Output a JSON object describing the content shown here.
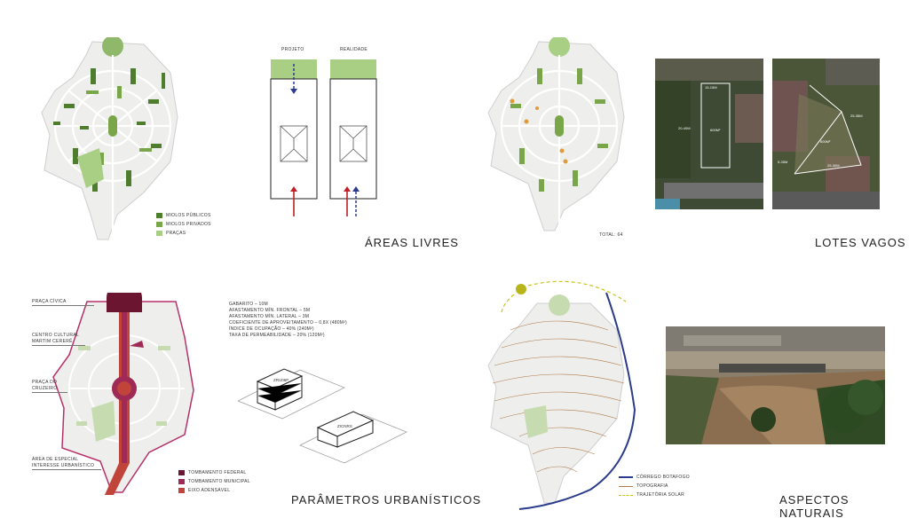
{
  "panels": {
    "areas_livres": {
      "title": "ÁREAS LIVRES",
      "legend": [
        {
          "label": "MIOLOS PÚBLICOS",
          "color": "#4f7d2e"
        },
        {
          "label": "MIOLOS PRIVADOS",
          "color": "#7aa64a"
        },
        {
          "label": "PRAÇAS",
          "color": "#a9cf84"
        }
      ],
      "diagram_labels": {
        "projeto": "PROJETO",
        "realidade": "REALIDADE"
      }
    },
    "lotes_vagos": {
      "title": "LOTES VAGOS",
      "total": "TOTAL: 64",
      "photo1_labels": [
        "15-15M",
        "20-40M",
        "600M²"
      ],
      "photo2_labels": [
        "25-35M",
        "600M²",
        "5-35M",
        "25-30M"
      ]
    },
    "parametros": {
      "title": "PARÂMETROS URBANÍSTICOS",
      "params": [
        "GABARITO – 10M",
        "AFASTAMENTO MÍN. FRONTAL – 5M",
        "AFASTAMENTO MÍN. LATERAL – 3M",
        "COEFICIENTE DE APROVEITAMENTO – 0,8X (480M²)",
        "ÍNDICE DE OCUPAÇÃO – 40% (240M²)",
        "TAXA DE PERMEABILIDADE – 20% (120M²)"
      ],
      "box_labels": [
        "ZRU06P",
        "ZICNRS"
      ],
      "callouts": [
        "PRAÇA CÍVICA",
        "CENTRO CULTURAL MARTIM CERERÊ",
        "PRAÇA DO CRUZEIRO",
        "ÁREA DE ESPECIAL INTERESSE URBANÍSTICO"
      ],
      "legend": [
        {
          "label": "TOMBAMENTO FEDERAL",
          "color": "#6b1530"
        },
        {
          "label": "TOMBAMENTO MUNICIPAL",
          "color": "#9e2a55"
        },
        {
          "label": "EIXO ADENSÁVEL",
          "color": "#c0443a"
        }
      ]
    },
    "aspectos": {
      "title": "ASPECTOS NATURAIS",
      "legend": [
        {
          "label": "CÓRREGO BOTAFOGO",
          "color": "#2b3c8c"
        },
        {
          "label": "TOPOGRAFIA",
          "color": "#b07a4a"
        },
        {
          "label": "TRAJETÓRIA SOLAR",
          "color": "#c8c21a"
        }
      ]
    }
  }
}
